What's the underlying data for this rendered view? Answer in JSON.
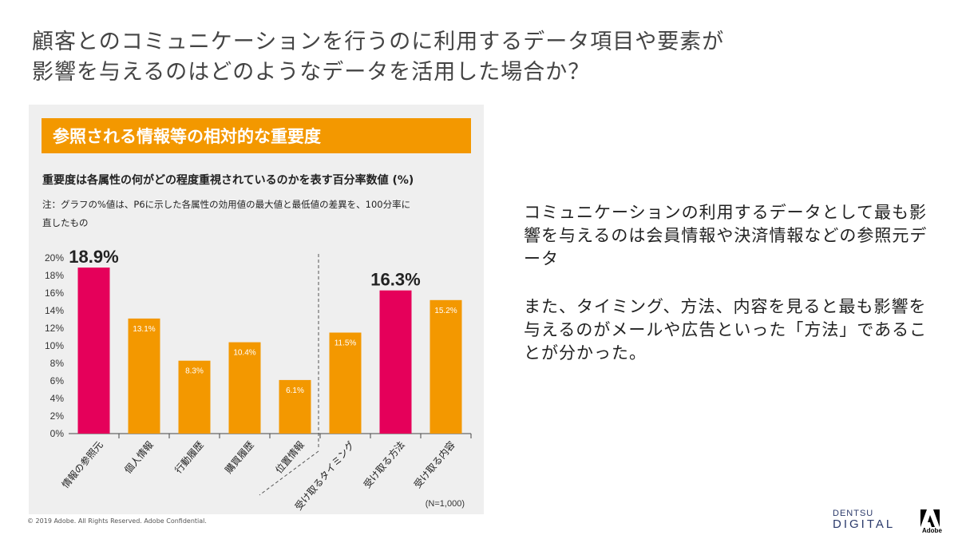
{
  "title_line1": "顧客とのコミュニケーションを行うのに利用するデータ項目や要素が",
  "title_line2": "影響を与えるのはどのようなデータを活用した場合か？",
  "banner": "参照される情報等の相対的な重要度",
  "subtitle": "重要度は各属性の何がどの程度重視されているのかを表す百分率数値 (%)",
  "note_line1": "注：グラフの%値は、P6に示した各属性の効用値の最大値と最低値の差異を、100分率に",
  "note_line2": "直したもの",
  "right_text_1": "コミュニケーションの利用するデータとして最も影響を与えるのは会員情報や決済情報などの参照元データ",
  "right_text_2": "また、タイミング、方法、内容を見ると最も影響を与えるのがメールや広告といった「方法」であることが分かった。",
  "copyright": "© 2019 Adobe. All Rights Reserved. Adobe Confidential.",
  "brand_top": "DENTSU",
  "brand_bottom": "DIGITAL",
  "adobe_label": "Adobe",
  "colors": {
    "highlight": "#e5005a",
    "normal": "#f39800",
    "banner": "#f39800"
  },
  "chart_data": {
    "type": "bar",
    "categories": [
      "情報の参照元",
      "個人情報",
      "行動履歴",
      "購買履歴",
      "位置情報",
      "受け取るタイミング",
      "受け取る方法",
      "受け取る内容"
    ],
    "values": [
      18.9,
      13.1,
      8.3,
      10.4,
      6.1,
      11.5,
      16.3,
      15.2
    ],
    "labels": [
      "18.9%",
      "13.1%",
      "8.3%",
      "10.4%",
      "6.1%",
      "11.5%",
      "16.3%",
      "15.2%"
    ],
    "highlighted": [
      true,
      false,
      false,
      false,
      false,
      false,
      true,
      false
    ],
    "yticks": [
      "0%",
      "2%",
      "4%",
      "6%",
      "8%",
      "10%",
      "12%",
      "14%",
      "16%",
      "18%",
      "20%"
    ],
    "ylim": [
      0,
      20
    ],
    "sample_note": "(N=1,000)",
    "title": "参照される情報等の相対的な重要度",
    "ylabel": "%"
  }
}
